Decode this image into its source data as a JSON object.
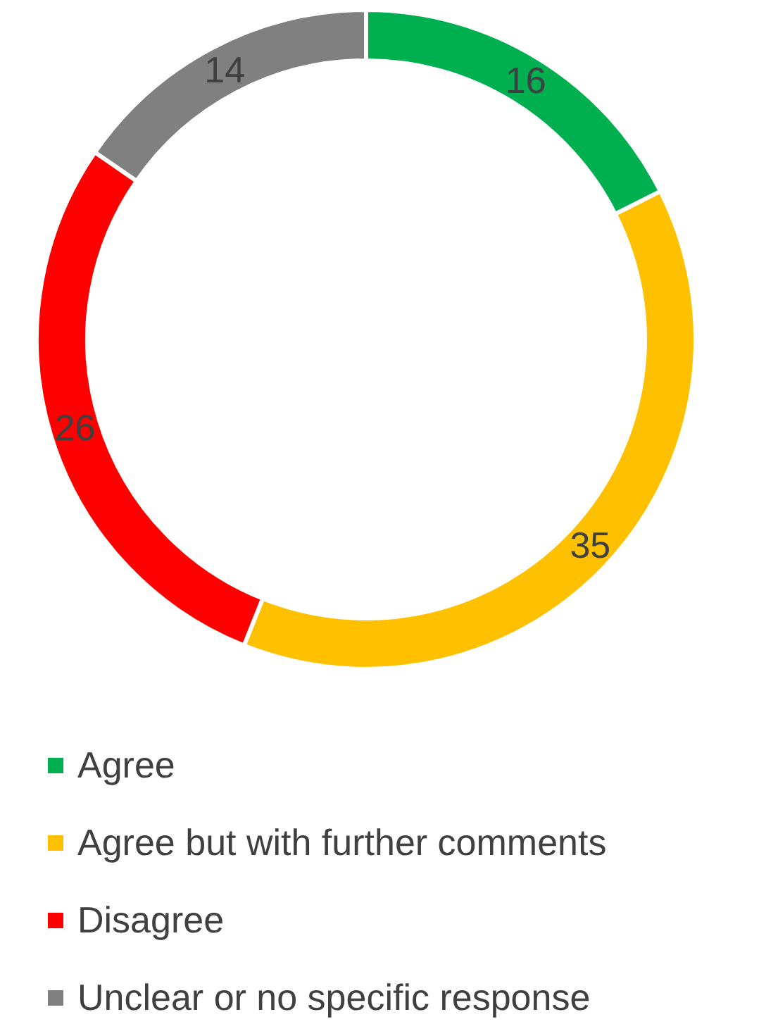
{
  "chart_data": {
    "type": "donut",
    "categories": [
      "Agree",
      "Agree but with further comments",
      "Disagree",
      "Unclear or no specific response"
    ],
    "values": [
      16,
      35,
      26,
      14
    ],
    "colors": [
      "#00b050",
      "#ffc000",
      "#ff0000",
      "#808080"
    ],
    "data_labels": true,
    "legend": "bottom"
  }
}
